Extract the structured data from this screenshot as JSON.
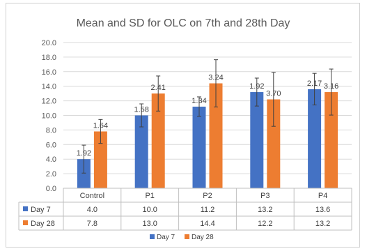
{
  "chart_data": {
    "type": "bar",
    "title": "Mean and SD for OLC on 7th and 28th Day",
    "categories": [
      "Control",
      "P1",
      "P2",
      "P3",
      "P4"
    ],
    "ylim": [
      0,
      20
    ],
    "yticks": [
      "0.0",
      "2.0",
      "4.0",
      "6.0",
      "8.0",
      "10.0",
      "12.0",
      "14.0",
      "16.0",
      "18.0",
      "20.0"
    ],
    "grid": true,
    "legend_position": "bottom",
    "series": [
      {
        "name": "Day 7",
        "color": "#4472c4",
        "values": [
          4.0,
          10.0,
          11.2,
          13.2,
          13.6
        ],
        "sd": [
          1.92,
          1.58,
          1.34,
          1.92,
          2.17
        ],
        "sd_labels": [
          "1.92",
          "1.58",
          "1.34",
          "1.92",
          "2.17"
        ],
        "table_values": [
          "4.0",
          "10.0",
          "11.2",
          "13.2",
          "13.6"
        ]
      },
      {
        "name": "Day 28",
        "color": "#ed7d31",
        "values": [
          7.8,
          13.0,
          14.4,
          12.2,
          13.2
        ],
        "sd": [
          1.64,
          2.41,
          3.24,
          3.7,
          3.16
        ],
        "sd_labels": [
          "1.64",
          "2.41",
          "3.24",
          "3.70",
          "3.16"
        ],
        "table_values": [
          "7.8",
          "13.0",
          "14.4",
          "12.2",
          "13.2"
        ]
      }
    ],
    "data_table": true
  }
}
